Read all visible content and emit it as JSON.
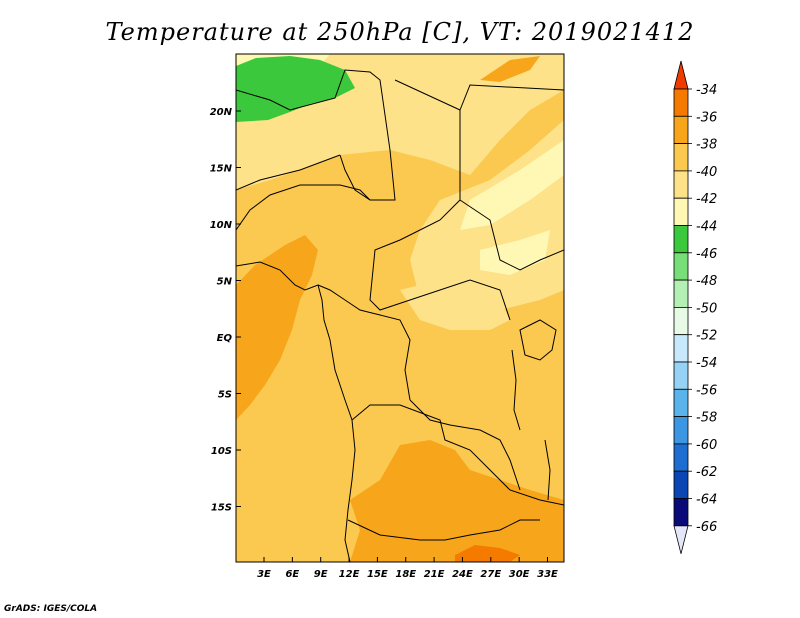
{
  "title": "Temperature at 250hPa [C], VT: 2019021412",
  "credit": "GrADS: IGES/COLA",
  "map": {
    "lon_labels": [
      "3E",
      "6E",
      "9E",
      "12E",
      "15E",
      "18E",
      "21E",
      "24E",
      "27E",
      "30E",
      "33E"
    ],
    "lat_labels": [
      "20N",
      "15N",
      "10N",
      "5N",
      "EQ",
      "5S",
      "10S",
      "15S"
    ]
  },
  "colorbar": {
    "levels": [
      "-34",
      "-36",
      "-38",
      "-40",
      "-42",
      "-44",
      "-46",
      "-48",
      "-50",
      "-52",
      "-54",
      "-56",
      "-58",
      "-60",
      "-62",
      "-64",
      "-66"
    ],
    "colors": [
      "#f03c00",
      "#f57a00",
      "#f7a61c",
      "#fbc950",
      "#fde28a",
      "#fff8b4",
      "#3cc83c",
      "#78de78",
      "#b4f0b4",
      "#e6fae6",
      "#c8e8fb",
      "#96d2f5",
      "#5ab4eb",
      "#3c96e1",
      "#1e6ed2",
      "#0a46b4",
      "#0a0a78",
      "#e6e6fa"
    ]
  }
}
